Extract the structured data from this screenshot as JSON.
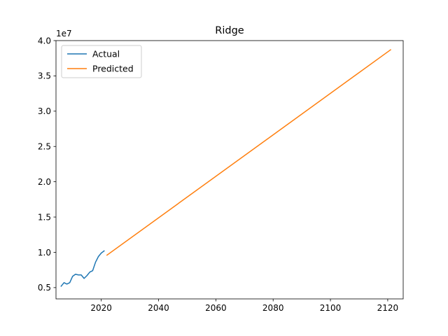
{
  "chart_data": {
    "type": "line",
    "title": "Ridge",
    "xlabel": "",
    "ylabel": "",
    "y_offset_label": "1e7",
    "xlim": [
      2004.2,
      2125.4
    ],
    "ylim": [
      0.34,
      4.0
    ],
    "y_scale_note": "values in units of 1e7",
    "x_ticks": [
      2020,
      2040,
      2060,
      2080,
      2100,
      2120
    ],
    "y_ticks": [
      0.5,
      1.0,
      1.5,
      2.0,
      2.5,
      3.0,
      3.5,
      4.0
    ],
    "y_tick_labels": [
      "0.5",
      "1.0",
      "1.5",
      "2.0",
      "2.5",
      "3.0",
      "3.5",
      "4.0"
    ],
    "grid": false,
    "legend_position": "top-left",
    "series": [
      {
        "name": "Actual",
        "color": "#1f77b4",
        "x": [
          2006,
          2007,
          2008,
          2009,
          2010,
          2011,
          2012,
          2013,
          2014,
          2015,
          2016,
          2017,
          2018,
          2019,
          2020,
          2021
        ],
        "y": [
          0.52,
          0.57,
          0.55,
          0.57,
          0.66,
          0.69,
          0.68,
          0.68,
          0.63,
          0.67,
          0.72,
          0.74,
          0.86,
          0.94,
          0.99,
          1.02
        ]
      },
      {
        "name": "Predicted",
        "color": "#ff7f0e",
        "x": [
          2022,
          2121
        ],
        "y": [
          0.96,
          3.87
        ]
      }
    ]
  }
}
